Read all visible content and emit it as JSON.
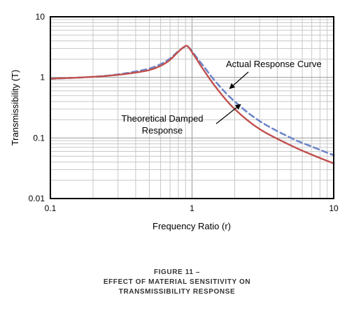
{
  "chart_data": {
    "type": "line",
    "xlabel": "Frequency Ratio (r)",
    "ylabel": "Transmissibility (T)",
    "x_scale": "log",
    "y_scale": "log",
    "xlim": [
      0.1,
      10
    ],
    "ylim": [
      0.01,
      10
    ],
    "x_ticks": [
      "0.1",
      "1",
      "10"
    ],
    "y_ticks": [
      "0.01",
      "0.1",
      "1",
      "10"
    ],
    "grid": true,
    "series": [
      {
        "name": "Theoretical Damped Response",
        "style": "solid",
        "color": "#c0504d",
        "x": [
          0.1,
          0.2,
          0.3,
          0.4,
          0.5,
          0.6,
          0.7,
          0.8,
          0.9,
          0.95,
          1.0,
          1.1,
          1.2,
          1.5,
          2.0,
          3.0,
          5.0,
          7.0,
          10.0
        ],
        "y": [
          0.95,
          1.02,
          1.1,
          1.2,
          1.32,
          1.55,
          1.95,
          2.65,
          3.3,
          3.1,
          2.6,
          1.85,
          1.35,
          0.65,
          0.3,
          0.14,
          0.075,
          0.053,
          0.038
        ]
      },
      {
        "name": "Actual Response Curve",
        "style": "dashed",
        "color": "#6e86c9",
        "x": [
          0.1,
          0.2,
          0.3,
          0.4,
          0.5,
          0.6,
          0.7,
          0.8,
          0.9,
          0.95,
          1.0,
          1.1,
          1.2,
          1.5,
          2.0,
          3.0,
          5.0,
          7.0,
          10.0
        ],
        "y": [
          0.95,
          1.02,
          1.12,
          1.25,
          1.4,
          1.65,
          2.05,
          2.7,
          3.25,
          3.1,
          2.7,
          2.0,
          1.55,
          0.8,
          0.4,
          0.19,
          0.1,
          0.072,
          0.052
        ]
      }
    ],
    "annotations": [
      {
        "text": "Actual Response Curve",
        "points_to": "Actual Response Curve",
        "x": 1.75,
        "y": 0.85
      },
      {
        "lines": [
          "Theoretical Damped",
          "Response"
        ],
        "points_to": "Theoretical Damped Response",
        "x": 2.3,
        "y": 0.35
      }
    ]
  },
  "caption": {
    "line1": "FIGURE 11 –",
    "line2": "EFFECT OF MATERIAL SENSITIVITY ON",
    "line3": "TRANSMISSIBILITY RESPONSE"
  },
  "colors": {
    "grid": "#c8c8c8",
    "frame": "#000000"
  }
}
